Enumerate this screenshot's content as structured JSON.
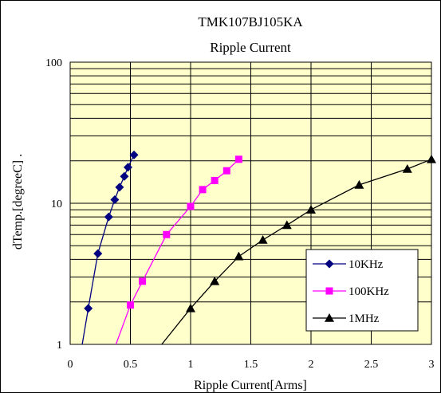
{
  "chart_data": {
    "type": "line",
    "title": "TMK107BJ105KA",
    "subtitle": "Ripple Current",
    "xlabel": "Ripple Current[Arms]",
    "ylabel": "dTemp.[degreeC] .",
    "xlim": [
      0,
      3
    ],
    "ylim": [
      1,
      100
    ],
    "y_scale": "log",
    "x_ticks": [
      "0",
      "0.5",
      "1",
      "1.5",
      "2",
      "2.5",
      "3"
    ],
    "y_ticks": [
      "1",
      "10",
      "100"
    ],
    "grid": true,
    "legend_position": "bottom-right",
    "plot_background": "#ffffcc",
    "series": [
      {
        "name": "10KHz",
        "color": "#000080",
        "marker": "diamond",
        "points": [
          [
            0.15,
            1.8
          ],
          [
            0.23,
            4.4
          ],
          [
            0.32,
            8.0
          ],
          [
            0.37,
            10.6
          ],
          [
            0.41,
            13.0
          ],
          [
            0.45,
            15.5
          ],
          [
            0.48,
            18.0
          ],
          [
            0.53,
            22.0
          ]
        ],
        "line_extension": [
          [
            0.1,
            1.0
          ],
          [
            0.15,
            1.8
          ]
        ]
      },
      {
        "name": "100KHz",
        "color": "#ff00ff",
        "marker": "square",
        "points": [
          [
            0.5,
            1.9
          ],
          [
            0.6,
            2.8
          ],
          [
            0.8,
            6.0
          ],
          [
            1.0,
            9.5
          ],
          [
            1.1,
            12.5
          ],
          [
            1.2,
            14.5
          ],
          [
            1.3,
            17.0
          ],
          [
            1.4,
            20.5
          ]
        ],
        "line_extension": [
          [
            0.38,
            1.0
          ],
          [
            0.5,
            1.9
          ]
        ]
      },
      {
        "name": "1MHz",
        "color": "#000000",
        "marker": "triangle",
        "points": [
          [
            1.0,
            1.8
          ],
          [
            1.2,
            2.8
          ],
          [
            1.4,
            4.2
          ],
          [
            1.6,
            5.5
          ],
          [
            1.8,
            7.0
          ],
          [
            2.0,
            9.0
          ],
          [
            2.4,
            13.5
          ],
          [
            2.8,
            17.5
          ],
          [
            3.0,
            20.5
          ]
        ],
        "line_extension": [
          [
            0.76,
            1.0
          ],
          [
            1.0,
            1.8
          ]
        ]
      }
    ]
  }
}
